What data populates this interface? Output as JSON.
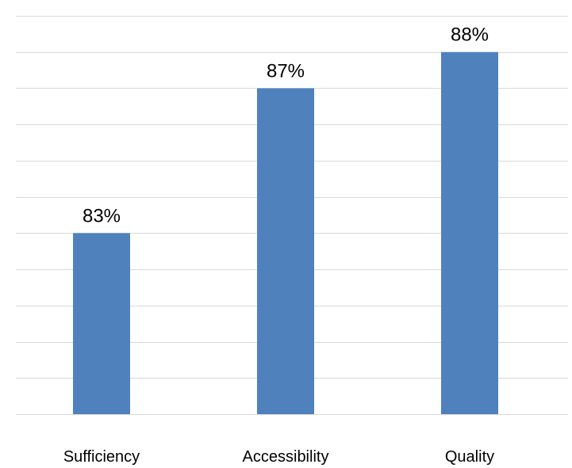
{
  "chart_data": {
    "type": "bar",
    "title": "",
    "xlabel": "",
    "ylabel": "",
    "categories": [
      "Sufficiency",
      "Accessibility",
      "Quality"
    ],
    "values": [
      83,
      87,
      88
    ],
    "value_labels": [
      "83%",
      "87%",
      "88%"
    ],
    "ylim": [
      78,
      89
    ],
    "grid": true,
    "legend": "none",
    "bar_color": "#4F81BD",
    "gridline_color": "#D9D9D9"
  }
}
